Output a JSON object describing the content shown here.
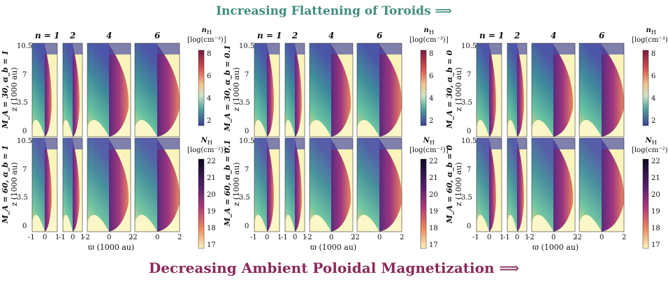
{
  "header": {
    "title": "Increasing Flattening of Toroids ⟹"
  },
  "footer": {
    "title": "Decreasing Ambient Poloidal Magnetization ⟹"
  },
  "panel_columns": [
    "n = 1",
    "2",
    "4",
    "6"
  ],
  "yticks": [
    "10.5",
    "7",
    "3.5",
    "0"
  ],
  "ylabel_unit": "z (1000 au)",
  "xticks": {
    "n1": [
      "-1",
      "0",
      "1"
    ],
    "n2": [
      "-1",
      "0",
      "1"
    ],
    "n4": [
      "-2",
      "0",
      "2"
    ],
    "n6": [
      "-2",
      "0",
      "2"
    ]
  },
  "xlabel": "ϖ (1000 au)",
  "colorbar_density": {
    "symbol": "n",
    "sub": "H",
    "unit": "[log(cm⁻³)]",
    "ticks": [
      "8",
      "6",
      "4",
      "2"
    ]
  },
  "colorbar_column": {
    "symbol": "N",
    "sub": "H",
    "unit": "[log(cm⁻²)]",
    "ticks": [
      "22",
      "21",
      "20",
      "19",
      "18",
      "17"
    ]
  },
  "figures": [
    {
      "row_top": "M_A = 30, α_b = 1",
      "row_bottom": "M_A = 60, α_b = 1"
    },
    {
      "row_top": "M_A = 30, α_b = 0.1",
      "row_bottom": "M_A = 60, α_b = 0.1"
    },
    {
      "row_top": "M_A = 30, α_b = 0",
      "row_bottom": "M_A = 60, α_b = 0"
    }
  ],
  "colors": {
    "top_title": "#3f8c7e",
    "bottom_title": "#8a2a5a"
  }
}
